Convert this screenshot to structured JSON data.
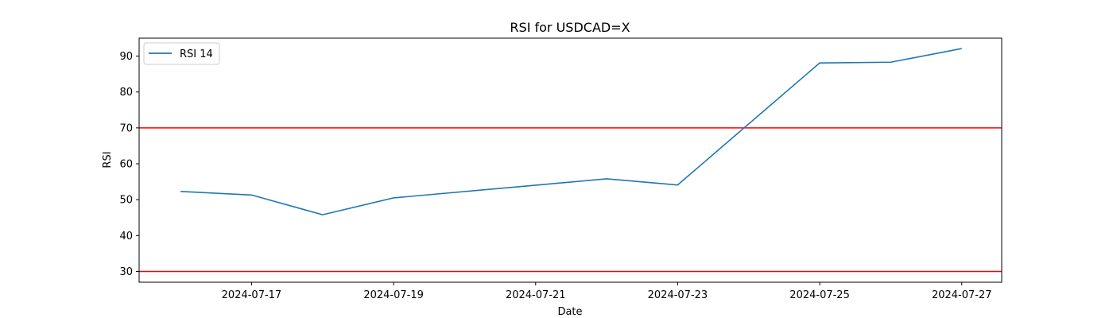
{
  "chart_data": {
    "type": "line",
    "title": "RSI for USDCAD=X",
    "xlabel": "Date",
    "ylabel": "RSI",
    "xlim": [
      "2024-07-15T10:00",
      "2024-07-27T13:30"
    ],
    "ylim": [
      27,
      95
    ],
    "x_ticks": [
      "2024-07-17",
      "2024-07-19",
      "2024-07-21",
      "2024-07-23",
      "2024-07-25",
      "2024-07-27"
    ],
    "y_ticks": [
      30,
      40,
      50,
      60,
      70,
      80,
      90
    ],
    "series": [
      {
        "name": "RSI 14",
        "color": "#1f77b4",
        "points": [
          {
            "x": "2024-07-16",
            "y": 52.3
          },
          {
            "x": "2024-07-17",
            "y": 51.3
          },
          {
            "x": "2024-07-18",
            "y": 45.8
          },
          {
            "x": "2024-07-19",
            "y": 50.5
          },
          {
            "x": "2024-07-22",
            "y": 55.8
          },
          {
            "x": "2024-07-23",
            "y": 54.1
          },
          {
            "x": "2024-07-25",
            "y": 88.1
          },
          {
            "x": "2024-07-26",
            "y": 88.3
          },
          {
            "x": "2024-07-27",
            "y": 92.1
          }
        ]
      }
    ],
    "reference_lines": [
      {
        "y": 70,
        "color": "#ff0000"
      },
      {
        "y": 30,
        "color": "#ff0000"
      }
    ],
    "legend": {
      "placement": "upper-left"
    },
    "grid": false
  }
}
